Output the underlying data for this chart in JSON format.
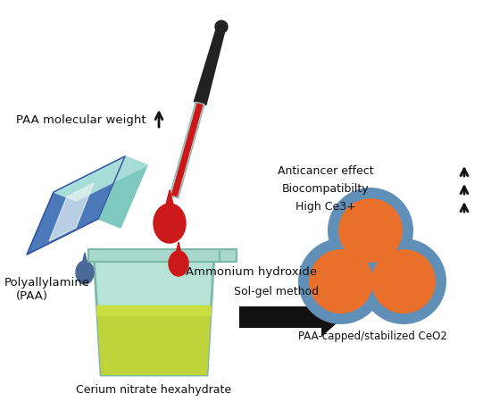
{
  "bg_color": "#ffffff",
  "colors": {
    "beaker_glass_top": "#a8d8cc",
    "beaker_glass_body": "#b8e4d8",
    "beaker_liquid_yellow": "#bfd43a",
    "beaker_liquid_top": "#d4e84a",
    "beaker_outline": "#7ab8a8",
    "paa_blue": "#4a78b8",
    "paa_blue_dark": "#3a60a0",
    "paa_teal": "#7ec8c0",
    "paa_teal_light": "#a8dcd8",
    "paa_white_stripe": "#e8f4f4",
    "dropper_dark": "#222222",
    "dropper_glass": "#c8e0e0",
    "dropper_glass_line": "#a0c8c8",
    "dropper_red": "#cc1818",
    "drop_red_big": "#cc1818",
    "drop_red_small": "#cc1818",
    "drop_blue": "#4a6898",
    "nanoparticle_orange": "#e8702a",
    "nanoparticle_ring": "#6090b8",
    "arrow_color": "#111111",
    "text_color": "#111111"
  },
  "labels": {
    "paa_mw": "PAA molecular weight",
    "polyallylamine": "Polyallylamine",
    "paa": "(PAA)",
    "ammonium": "Ammonium hydroxide",
    "cerium_nitrate": "Cerium nitrate hexahydrate",
    "sol_gel": "Sol-gel method",
    "paa_capped": "PAA-capped/stabilized CeO2",
    "anticancer": "Anticancer effect",
    "biocompat": "Biocompatibilty",
    "high_ce": "High Ce3+"
  }
}
